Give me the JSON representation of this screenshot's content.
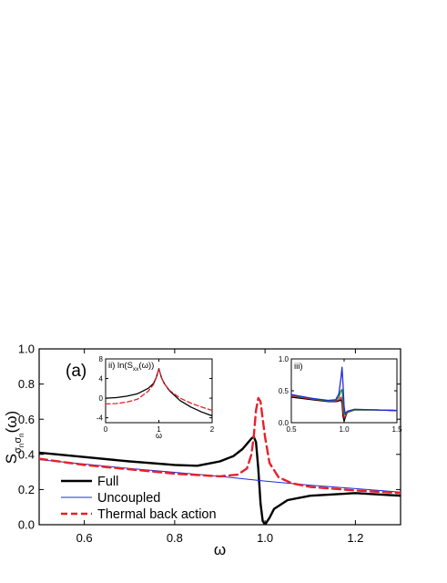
{
  "panel_label": "(a)",
  "chart_data": [
    {
      "type": "line",
      "panel": "main",
      "xlabel": "ω",
      "ylabel": {
        "base": "S",
        "sub1": "σ",
        "subsub1": "n",
        "sub2": "σ",
        "subsub2": "n",
        "arg": "(ω)"
      },
      "xlim": [
        0.5,
        1.3
      ],
      "ylim": [
        0.0,
        1.0
      ],
      "xticks": [
        0.6,
        0.8,
        1.0,
        1.2
      ],
      "yticks": [
        0.0,
        0.2,
        0.4,
        0.6,
        0.8,
        1.0
      ],
      "legend_position": "bottom-left",
      "series": [
        {
          "name": "Full",
          "color": "#000000",
          "dash": "solid",
          "width": 2.4,
          "x": [
            0.5,
            0.6,
            0.7,
            0.8,
            0.85,
            0.9,
            0.93,
            0.95,
            0.96,
            0.97,
            0.975,
            0.98,
            0.985,
            0.99,
            0.995,
            1.0,
            1.01,
            1.02,
            1.05,
            1.1,
            1.2,
            1.3
          ],
          "y": [
            0.41,
            0.385,
            0.36,
            0.34,
            0.335,
            0.36,
            0.39,
            0.43,
            0.46,
            0.49,
            0.5,
            0.47,
            0.32,
            0.12,
            0.02,
            0.0,
            0.04,
            0.09,
            0.14,
            0.165,
            0.18,
            0.165
          ]
        },
        {
          "name": "Uncoupled",
          "color": "#1f2dd6",
          "dash": "solid",
          "width": 1.0,
          "x": [
            0.5,
            0.6,
            0.7,
            0.8,
            0.9,
            1.0,
            1.1,
            1.2,
            1.3
          ],
          "y": [
            0.37,
            0.345,
            0.32,
            0.298,
            0.275,
            0.248,
            0.225,
            0.205,
            0.185
          ]
        },
        {
          "name": "Thermal back action",
          "color": "#e8202a",
          "dash": "dashed",
          "width": 2.4,
          "x": [
            0.5,
            0.6,
            0.7,
            0.8,
            0.9,
            0.94,
            0.96,
            0.97,
            0.975,
            0.98,
            0.985,
            0.99,
            0.995,
            1.0,
            1.01,
            1.03,
            1.06,
            1.1,
            1.2,
            1.3
          ],
          "y": [
            0.375,
            0.34,
            0.315,
            0.29,
            0.275,
            0.285,
            0.32,
            0.4,
            0.5,
            0.65,
            0.72,
            0.7,
            0.6,
            0.5,
            0.35,
            0.27,
            0.235,
            0.215,
            0.195,
            0.18
          ]
        }
      ]
    },
    {
      "type": "line",
      "panel": "inset-ii",
      "title": "ii) ln(S",
      "title_sub": "xx",
      "title_end": "(ω))",
      "xlabel": "ω",
      "xlim": [
        0,
        2
      ],
      "ylim": [
        -5,
        8
      ],
      "xticks": [
        0,
        1,
        2
      ],
      "yticks": [
        -4,
        0,
        4,
        8
      ],
      "series": [
        {
          "color": "#000000",
          "dash": "solid",
          "x": [
            0,
            0.2,
            0.4,
            0.6,
            0.8,
            0.9,
            0.95,
            1.0,
            1.05,
            1.1,
            1.2,
            1.4,
            1.6,
            1.8,
            2.0
          ],
          "y": [
            0.0,
            0.1,
            0.4,
            0.9,
            2.0,
            3.0,
            4.2,
            6.0,
            4.2,
            3.0,
            1.5,
            -0.5,
            -1.8,
            -2.8,
            -3.6
          ]
        },
        {
          "color": "#e8202a",
          "dash": "dashed",
          "x": [
            0,
            0.2,
            0.4,
            0.6,
            0.8,
            0.9,
            0.95,
            1.0,
            1.05,
            1.1,
            1.2,
            1.4,
            1.6,
            1.8,
            2.0
          ],
          "y": [
            -1.2,
            -1.1,
            -0.8,
            -0.2,
            1.4,
            2.8,
            4.1,
            6.0,
            4.1,
            3.0,
            1.6,
            0.0,
            -1.0,
            -1.8,
            -2.5
          ]
        }
      ]
    },
    {
      "type": "line",
      "panel": "inset-iii",
      "title": "iii)",
      "xlim": [
        0.5,
        1.5
      ],
      "ylim": [
        0.0,
        1.0
      ],
      "xticks": [
        0.5,
        1.0,
        1.5
      ],
      "yticks": [
        0.0,
        0.5,
        1.0
      ],
      "series": [
        {
          "color": "#000000",
          "dash": "solid",
          "x": [
            0.5,
            0.7,
            0.85,
            0.92,
            0.95,
            0.97,
            0.98,
            0.99,
            1.0,
            1.01,
            1.03,
            1.1,
            1.3,
            1.5
          ],
          "y": [
            0.4,
            0.36,
            0.33,
            0.33,
            0.34,
            0.36,
            0.3,
            0.1,
            0.02,
            0.08,
            0.16,
            0.2,
            0.2,
            0.19
          ]
        },
        {
          "color": "#e8202a",
          "dash": "solid",
          "x": [
            0.5,
            0.7,
            0.85,
            0.92,
            0.95,
            0.97,
            0.98,
            0.99,
            1.0,
            1.01,
            1.03,
            1.1,
            1.3,
            1.5
          ],
          "y": [
            0.42,
            0.37,
            0.34,
            0.34,
            0.36,
            0.4,
            0.37,
            0.2,
            0.08,
            0.1,
            0.16,
            0.2,
            0.2,
            0.19
          ]
        },
        {
          "color": "#1a8c2e",
          "dash": "solid",
          "x": [
            0.5,
            0.7,
            0.85,
            0.92,
            0.95,
            0.97,
            0.98,
            0.99,
            1.0,
            1.01,
            1.03,
            1.1,
            1.3,
            1.5
          ],
          "y": [
            0.43,
            0.38,
            0.34,
            0.35,
            0.4,
            0.5,
            0.52,
            0.35,
            0.15,
            0.12,
            0.17,
            0.2,
            0.2,
            0.19
          ]
        },
        {
          "color": "#1f2dd6",
          "dash": "solid",
          "x": [
            0.5,
            0.7,
            0.85,
            0.92,
            0.95,
            0.97,
            0.98,
            0.99,
            1.0,
            1.01,
            1.03,
            1.1,
            1.3,
            1.5
          ],
          "y": [
            0.44,
            0.38,
            0.35,
            0.36,
            0.45,
            0.7,
            0.87,
            0.6,
            0.25,
            0.14,
            0.18,
            0.21,
            0.2,
            0.19
          ]
        }
      ]
    }
  ]
}
